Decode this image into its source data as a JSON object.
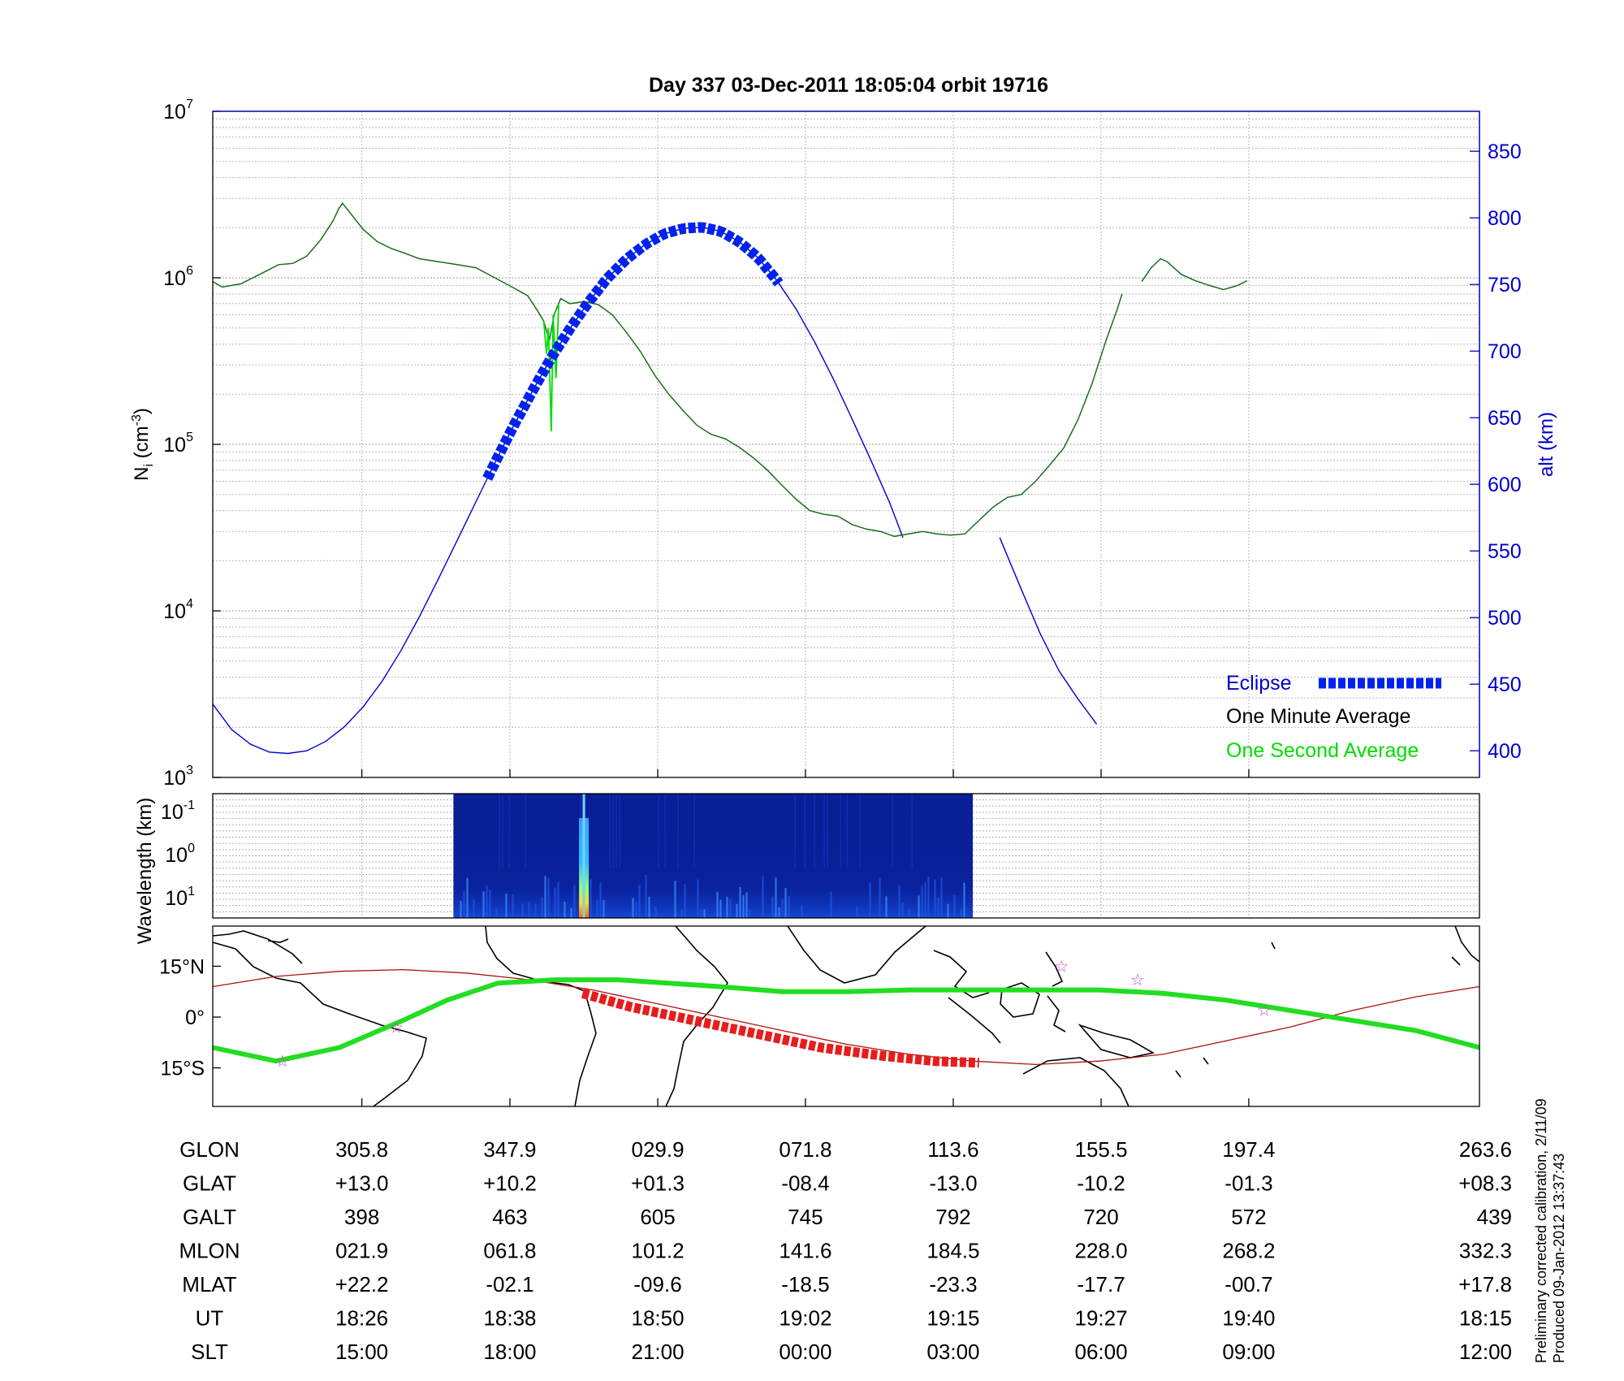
{
  "title": "Day 337  03-Dec-2011 18:05:04   orbit 19716",
  "colors": {
    "density": "#1a6e1a",
    "one_second": "#00dd00",
    "altitude": "#0000cc",
    "eclipse": "#0022ee",
    "ground_track": "#22dd22",
    "eclipse_track": "#e81c1c",
    "orbit": "#aa1111",
    "stars": "#cc44cc"
  },
  "chart_data": [
    {
      "type": "line",
      "panel": "density",
      "ylabel": "N",
      "ylabel_sub": "i",
      "ylabel_unit": " (cm",
      "ylabel_unit_sup": "-3",
      "ylabel_close": ")",
      "yscale": "log",
      "ylim": [
        1000,
        10000000
      ],
      "y_ticks": [
        {
          "base": "10",
          "exp": "3"
        },
        {
          "base": "10",
          "exp": "4"
        },
        {
          "base": "10",
          "exp": "5"
        },
        {
          "base": "10",
          "exp": "6"
        },
        {
          "base": "10",
          "exp": "7"
        }
      ],
      "y2label": "alt (km)",
      "y2lim": [
        380,
        880
      ],
      "y2_ticks": [
        "400",
        "450",
        "500",
        "550",
        "600",
        "650",
        "700",
        "750",
        "800",
        "850"
      ],
      "x_tick_ut": [
        "18:26",
        "18:38",
        "18:50",
        "19:02",
        "19:15",
        "19:27",
        "19:40"
      ],
      "series": [
        {
          "name": "One Minute Average",
          "segments": [
            [
              [
                0.0,
                950000
              ],
              [
                0.01,
                880000
              ],
              [
                0.03,
                920000
              ],
              [
                0.05,
                1050000
              ],
              [
                0.07,
                1200000
              ],
              [
                0.085,
                1220000
              ],
              [
                0.1,
                1350000
              ],
              [
                0.115,
                1700000
              ],
              [
                0.128,
                2200000
              ],
              [
                0.134,
                2600000
              ],
              [
                0.138,
                2800000
              ],
              [
                0.145,
                2500000
              ],
              [
                0.16,
                1950000
              ],
              [
                0.175,
                1650000
              ],
              [
                0.19,
                1500000
              ],
              [
                0.205,
                1400000
              ],
              [
                0.22,
                1300000
              ],
              [
                0.24,
                1250000
              ],
              [
                0.26,
                1200000
              ],
              [
                0.28,
                1150000
              ],
              [
                0.3,
                1000000
              ],
              [
                0.32,
                870000
              ],
              [
                0.335,
                780000
              ],
              [
                0.345,
                640000
              ],
              [
                0.352,
                550000
              ],
              [
                0.358,
                420000
              ],
              [
                0.363,
                600000
              ],
              [
                0.37,
                750000
              ],
              [
                0.38,
                700000
              ],
              [
                0.395,
                720000
              ],
              [
                0.41,
                690000
              ],
              [
                0.425,
                600000
              ],
              [
                0.44,
                470000
              ],
              [
                0.455,
                360000
              ],
              [
                0.47,
                260000
              ],
              [
                0.485,
                200000
              ],
              [
                0.5,
                160000
              ],
              [
                0.515,
                130000
              ],
              [
                0.53,
                115000
              ],
              [
                0.545,
                108000
              ],
              [
                0.56,
                96000
              ],
              [
                0.575,
                83000
              ],
              [
                0.59,
                70000
              ],
              [
                0.605,
                57000
              ],
              [
                0.62,
                47000
              ],
              [
                0.635,
                40000
              ],
              [
                0.65,
                38000
              ],
              [
                0.665,
                37000
              ],
              [
                0.68,
                33000
              ],
              [
                0.695,
                31000
              ],
              [
                0.71,
                30000
              ],
              [
                0.725,
                28000
              ],
              [
                0.74,
                29000
              ],
              [
                0.755,
                30000
              ],
              [
                0.77,
                29000
              ],
              [
                0.785,
                28500
              ],
              [
                0.8,
                29000
              ],
              [
                0.815,
                35000
              ],
              [
                0.83,
                42000
              ],
              [
                0.845,
                48000
              ],
              [
                0.86,
                50000
              ],
              [
                0.875,
                60000
              ],
              [
                0.89,
                75000
              ],
              [
                0.905,
                95000
              ],
              [
                0.92,
                140000
              ],
              [
                0.935,
                230000
              ],
              [
                0.95,
                420000
              ],
              [
                0.962,
                650000
              ],
              [
                0.967,
                800000
              ]
            ],
            [
              [
                0.988,
                950000
              ],
              [
                0.998,
                1150000
              ],
              [
                1.008,
                1300000
              ],
              [
                1.015,
                1250000
              ],
              [
                1.03,
                1050000
              ],
              [
                1.045,
                960000
              ],
              [
                1.06,
                900000
              ],
              [
                1.075,
                850000
              ],
              [
                1.09,
                900000
              ],
              [
                1.1,
                960000
              ]
            ]
          ]
        },
        {
          "name": "One Second Average",
          "segments": [
            [
              [
                0.352,
                550000
              ],
              [
                0.355,
                350000
              ],
              [
                0.357,
                500000
              ],
              [
                0.36,
                120000
              ],
              [
                0.362,
                600000
              ],
              [
                0.365,
                250000
              ],
              [
                0.368,
                700000
              ]
            ]
          ]
        },
        {
          "name": "alt",
          "axis": "y2",
          "segments": [
            [
              [
                0.0,
                435
              ],
              [
                0.02,
                416
              ],
              [
                0.04,
                405
              ],
              [
                0.06,
                399
              ],
              [
                0.08,
                398
              ],
              [
                0.1,
                400
              ],
              [
                0.12,
                407
              ],
              [
                0.14,
                418
              ],
              [
                0.16,
                433
              ],
              [
                0.18,
                452
              ],
              [
                0.2,
                475
              ],
              [
                0.22,
                501
              ],
              [
                0.24,
                529
              ],
              [
                0.26,
                558
              ],
              [
                0.28,
                587
              ],
              [
                0.3,
                616
              ],
              [
                0.32,
                644
              ],
              [
                0.34,
                670
              ],
              [
                0.36,
                695
              ],
              [
                0.38,
                717
              ],
              [
                0.4,
                737
              ],
              [
                0.42,
                755
              ],
              [
                0.44,
                769
              ],
              [
                0.46,
                780
              ],
              [
                0.48,
                788
              ],
              [
                0.5,
                792
              ],
              [
                0.52,
                793
              ],
              [
                0.54,
                790
              ],
              [
                0.56,
                782
              ],
              [
                0.58,
                770
              ],
              [
                0.6,
                753
              ],
              [
                0.62,
                732
              ],
              [
                0.64,
                707
              ],
              [
                0.66,
                679
              ],
              [
                0.68,
                649
              ],
              [
                0.7,
                618
              ],
              [
                0.72,
                586
              ],
              [
                0.734,
                560
              ]
            ],
            [
              [
                0.837,
                560
              ],
              [
                0.86,
                521
              ],
              [
                0.88,
                488
              ],
              [
                0.9,
                460
              ],
              [
                0.92,
                439
              ],
              [
                0.94,
                420
              ]
            ]
          ]
        },
        {
          "name": "Eclipse",
          "axis": "y2",
          "range_x": [
            0.292,
            0.605
          ]
        }
      ],
      "legend": [
        "Eclipse",
        "One Minute Average",
        "One Second Average"
      ],
      "legend_position": "bottom-right"
    },
    {
      "type": "heatmap",
      "panel": "spectrogram",
      "ylabel": "Wavelength (km)",
      "y_ticks": [
        {
          "base": "10",
          "exp": "-1"
        },
        {
          "base": "10",
          "exp": "0"
        },
        {
          "base": "10",
          "exp": "1"
        }
      ],
      "x_range": [
        0.19,
        0.6
      ],
      "peak_x": 0.293
    },
    {
      "type": "map",
      "panel": "ground-track",
      "y_ticks": [
        "15°N",
        "0°",
        "15°S"
      ],
      "ground_track": [
        [
          0.0,
          -9
        ],
        [
          0.05,
          -13
        ],
        [
          0.1,
          -9
        ],
        [
          0.15,
          -1
        ],
        [
          0.185,
          5
        ],
        [
          0.225,
          10
        ],
        [
          0.27,
          11
        ],
        [
          0.32,
          11
        ],
        [
          0.4,
          9
        ],
        [
          0.45,
          7.5
        ],
        [
          0.5,
          7.5
        ],
        [
          0.55,
          8
        ],
        [
          0.6,
          8
        ],
        [
          0.65,
          8
        ],
        [
          0.7,
          8
        ],
        [
          0.75,
          7
        ],
        [
          0.8,
          5
        ],
        [
          0.85,
          2
        ],
        [
          0.9,
          -1
        ],
        [
          0.95,
          -4
        ],
        [
          1.0,
          -9
        ]
      ],
      "eclipse_track": [
        [
          0.292,
          7
        ],
        [
          0.33,
          3
        ],
        [
          0.38,
          -1
        ],
        [
          0.43,
          -5
        ],
        [
          0.48,
          -9
        ],
        [
          0.53,
          -11.5
        ],
        [
          0.57,
          -13
        ],
        [
          0.605,
          -13.5
        ]
      ],
      "orbit_line": [
        [
          0.0,
          9
        ],
        [
          0.05,
          12
        ],
        [
          0.1,
          13.5
        ],
        [
          0.15,
          14
        ],
        [
          0.2,
          13
        ],
        [
          0.25,
          11
        ],
        [
          0.3,
          8
        ],
        [
          0.35,
          4
        ],
        [
          0.4,
          0
        ],
        [
          0.45,
          -4
        ],
        [
          0.5,
          -8
        ],
        [
          0.55,
          -11
        ],
        [
          0.6,
          -13
        ],
        [
          0.65,
          -14
        ],
        [
          0.7,
          -13
        ],
        [
          0.75,
          -11
        ],
        [
          0.8,
          -7
        ],
        [
          0.85,
          -3
        ],
        [
          0.9,
          2
        ],
        [
          0.95,
          6
        ],
        [
          1.0,
          9
        ]
      ],
      "stars": [
        [
          0.055,
          -13
        ],
        [
          0.145,
          -3
        ],
        [
          0.67,
          15
        ],
        [
          0.73,
          11
        ],
        [
          0.83,
          2
        ]
      ]
    }
  ],
  "table": {
    "rows": [
      {
        "label": "GLON",
        "values": [
          "305.8",
          "347.9",
          "029.9",
          "071.8",
          "113.6",
          "155.5",
          "197.4",
          "263.6"
        ]
      },
      {
        "label": "GLAT",
        "values": [
          "+13.0",
          "+10.2",
          "+01.3",
          "-08.4",
          "-13.0",
          "-10.2",
          "-01.3",
          "+08.3"
        ]
      },
      {
        "label": "GALT",
        "values": [
          "398",
          "463",
          "605",
          "745",
          "792",
          "720",
          "572",
          "439"
        ]
      },
      {
        "label": "MLON",
        "values": [
          "021.9",
          "061.8",
          "101.2",
          "141.6",
          "184.5",
          "228.0",
          "268.2",
          "332.3"
        ]
      },
      {
        "label": "MLAT",
        "values": [
          "+22.2",
          "-02.1",
          "-09.6",
          "-18.5",
          "-23.3",
          "-17.7",
          "-00.7",
          "+17.8"
        ]
      },
      {
        "label": "UT",
        "values": [
          "18:26",
          "18:38",
          "18:50",
          "19:02",
          "19:15",
          "19:27",
          "19:40",
          "18:15"
        ]
      },
      {
        "label": "SLT",
        "values": [
          "15:00",
          "18:00",
          "21:00",
          "00:00",
          "03:00",
          "06:00",
          "09:00",
          "12:00"
        ]
      }
    ]
  },
  "footnote": {
    "line1": "Preliminary corrected calibration, 2/11/09",
    "line2": "Produced 09-Jan-2012 13:37:43"
  }
}
